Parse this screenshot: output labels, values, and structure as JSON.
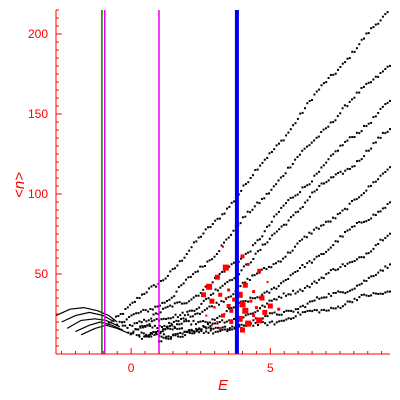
{
  "chart_data": {
    "type": "scatter",
    "title": "",
    "xlabel": "E",
    "ylabel": "<n>",
    "xlim": [
      -2.7,
      9.3
    ],
    "ylim": [
      0,
      215
    ],
    "x_ticks": [
      0,
      5
    ],
    "y_ticks": [
      50,
      100,
      150,
      200
    ],
    "grid": false,
    "colors": {
      "axis": "#ff0000",
      "band_points": "#000000",
      "highlight_points": "#ff0000",
      "marker_green": "#007700",
      "marker_magenta": "#ee00ee",
      "marker_blue": "#0000ee"
    },
    "vertical_lines": [
      {
        "x": -1.05,
        "color": "#007700",
        "width": 1.5
      },
      {
        "x": -0.95,
        "color": "#ee00ee",
        "width": 1.5
      },
      {
        "x": 1.0,
        "color": "#ee00ee",
        "width": 1.5
      },
      {
        "x": 3.8,
        "color": "#0000ee",
        "width": 4
      }
    ],
    "dotted_bands": [
      {
        "x": [
          -0.8,
          1.0,
          3.0,
          5.0,
          7.0,
          9.3
        ],
        "y": [
          20,
          44,
          82,
          125,
          170,
          215
        ]
      },
      {
        "x": [
          -0.5,
          1.5,
          3.0,
          5.0,
          7.0,
          9.3
        ],
        "y": [
          18,
          36,
          63,
          103,
          142,
          182
        ]
      },
      {
        "x": [
          -0.3,
          2.0,
          4.0,
          5.5,
          7.5,
          9.3
        ],
        "y": [
          16,
          33,
          60,
          92,
          128,
          158
        ]
      },
      {
        "x": [
          -0.1,
          2.5,
          4.5,
          6.5,
          8.0,
          9.3
        ],
        "y": [
          14,
          30,
          62,
          100,
          119,
          140
        ]
      },
      {
        "x": [
          0.0,
          2.5,
          5.0,
          7.0,
          8.5,
          9.3
        ],
        "y": [
          13,
          25,
          55,
          82,
          102,
          118
        ]
      },
      {
        "x": [
          0.2,
          3.0,
          5.5,
          7.5,
          9.3
        ],
        "y": [
          12,
          22,
          45,
          72,
          95
        ]
      },
      {
        "x": [
          0.3,
          3.5,
          6.0,
          8.0,
          9.3
        ],
        "y": [
          11,
          20,
          40,
          58,
          75
        ]
      },
      {
        "x": [
          0.5,
          4.0,
          6.5,
          8.5,
          9.3
        ],
        "y": [
          10,
          18,
          32,
          46,
          55
        ]
      },
      {
        "x": [
          1.0,
          4.5,
          7.0,
          9.3
        ],
        "y": [
          10,
          18,
          28,
          40
        ]
      }
    ],
    "low_energy_curves": [
      {
        "x": [
          -2.7,
          -2.2,
          -1.7,
          -1.2,
          -0.8,
          -0.5
        ],
        "y": [
          24,
          28,
          29,
          27,
          24,
          20
        ]
      },
      {
        "x": [
          -2.5,
          -2.0,
          -1.5,
          -1.0,
          -0.6
        ],
        "y": [
          20,
          24,
          26,
          24,
          20
        ]
      },
      {
        "x": [
          -2.3,
          -1.8,
          -1.3,
          -0.9,
          -0.4
        ],
        "y": [
          16,
          21,
          22,
          21,
          17
        ]
      },
      {
        "x": [
          -2.0,
          -1.5,
          -1.1,
          -0.7,
          -0.3
        ],
        "y": [
          14,
          18,
          20,
          18,
          15
        ]
      },
      {
        "x": [
          -1.8,
          -1.3,
          -0.9,
          -0.5,
          -0.1
        ],
        "y": [
          12,
          16,
          18,
          16,
          13
        ]
      }
    ],
    "highlight_points": [
      {
        "x": 3.3,
        "y": 67
      },
      {
        "x": 4.0,
        "y": 61
      },
      {
        "x": 3.4,
        "y": 54
      },
      {
        "x": 4.2,
        "y": 56
      },
      {
        "x": 3.1,
        "y": 48
      },
      {
        "x": 3.8,
        "y": 46
      },
      {
        "x": 4.6,
        "y": 52
      },
      {
        "x": 2.8,
        "y": 42
      },
      {
        "x": 3.5,
        "y": 40
      },
      {
        "x": 4.1,
        "y": 43
      },
      {
        "x": 4.9,
        "y": 45
      },
      {
        "x": 3.2,
        "y": 37
      },
      {
        "x": 3.9,
        "y": 37
      },
      {
        "x": 4.4,
        "y": 39
      },
      {
        "x": 2.9,
        "y": 33
      },
      {
        "x": 3.4,
        "y": 35
      },
      {
        "x": 3.7,
        "y": 34
      },
      {
        "x": 4.0,
        "y": 31
      },
      {
        "x": 4.3,
        "y": 33
      },
      {
        "x": 4.7,
        "y": 35
      },
      {
        "x": 3.0,
        "y": 29
      },
      {
        "x": 3.6,
        "y": 27
      },
      {
        "x": 4.1,
        "y": 27
      },
      {
        "x": 4.5,
        "y": 29
      },
      {
        "x": 5.0,
        "y": 30
      },
      {
        "x": 2.7,
        "y": 24
      },
      {
        "x": 3.3,
        "y": 24
      },
      {
        "x": 3.9,
        "y": 22
      },
      {
        "x": 4.4,
        "y": 24
      },
      {
        "x": 4.8,
        "y": 26
      },
      {
        "x": 3.1,
        "y": 20
      },
      {
        "x": 3.6,
        "y": 20
      },
      {
        "x": 4.2,
        "y": 19
      },
      {
        "x": 3.2,
        "y": 16
      },
      {
        "x": 4.0,
        "y": 15
      },
      {
        "x": 2.9,
        "y": 18
      },
      {
        "x": 3.5,
        "y": 30
      },
      {
        "x": 4.6,
        "y": 21
      },
      {
        "x": 5.3,
        "y": 28
      },
      {
        "x": 2.6,
        "y": 37
      }
    ]
  }
}
